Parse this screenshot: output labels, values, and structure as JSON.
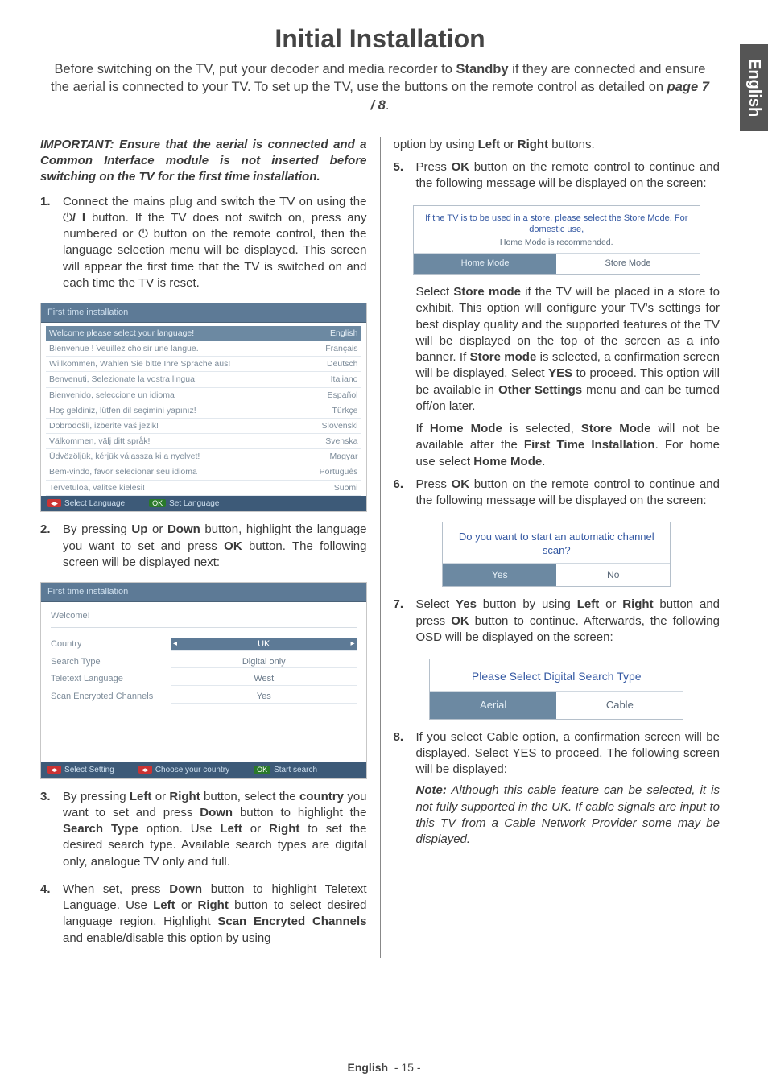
{
  "side_tab": "English",
  "title": "Initial Installation",
  "intro": {
    "pre": "Before switching on the TV, put your decoder and media recorder to ",
    "standby": "Standby",
    "mid": " if they are connected and ensure the aerial is connected to your TV. To set up the TV, use the buttons on the remote control as detailed on ",
    "page_ref": "page 7 / 8",
    "post": "."
  },
  "important": "IMPORTANT: Ensure that the aerial is connected and a Common Interface module is not inserted before switching on the TV for the first time installation.",
  "steps": {
    "s1": {
      "num": "1.",
      "text_a": "Connect the mains plug and switch the TV on using the ",
      "text_b": " button. If the TV does not switch on, press any numbered or ",
      "text_c": " button on the remote control, then the language selection menu will be displayed. This screen will appear the first time that the TV is switched on and each time the TV is reset."
    },
    "s2": {
      "num": "2.",
      "text_a": "By pressing ",
      "up": "Up",
      "or": " or ",
      "down": "Down",
      "text_b": " button, highlight the language you want to set and press ",
      "ok": "OK",
      "text_c": " button. The following screen will be displayed next:"
    },
    "s3": {
      "num": "3.",
      "text_a": "By pressing ",
      "left": "Left",
      "or1": " or ",
      "right": "Right",
      "text_b": " button, select the ",
      "country": "country",
      "text_c": " you want to set and press ",
      "down": "Down",
      "text_d": " button to highlight the ",
      "search": "Search Type",
      "text_e": " option. Use ",
      "left2": "Left",
      "or2": " or ",
      "right2": "Right",
      "text_f": " to set the desired search type. Available search types are digital only, analogue TV only and full."
    },
    "s4": {
      "num": "4.",
      "text_a": "When set, press ",
      "down": "Down",
      "text_b": " button to highlight Teletext Language. Use ",
      "left": "Left",
      "or": " or ",
      "right": "Right",
      "text_c": " button to select desired language region. Highlight ",
      "scan": "Scan Encryted Channels",
      "text_d": " and enable/disable this option by using ",
      "left2": "Left",
      "or2": " or ",
      "right2": "Right",
      "text_e": " buttons."
    },
    "s5": {
      "num": "5.",
      "text_a": "Press ",
      "ok": "OK",
      "text_b": " button on the remote control to continue and the following message will be displayed on the screen:"
    },
    "s5_after": {
      "p1_a": "Select ",
      "p1_b": "Store mode",
      "p1_c": " if the TV will be placed in a store to exhibit. This option will configure your TV's settings for best display quality and the supported features of the TV will be displayed on the top of the screen as a info banner. If ",
      "p1_d": "Store mode",
      "p1_e": " is selected, a confirmation screen will be displayed. Select ",
      "p1_f": "YES",
      "p1_g": " to proceed. This option will be available in ",
      "p1_h": "Other Settings",
      "p1_i": " menu and can be turned off/on later.",
      "p2_a": "If ",
      "p2_b": "Home Mode",
      "p2_c": " is selected, ",
      "p2_d": "Store Mode",
      "p2_e": " will not be available after the ",
      "p2_f": "First Time Installation",
      "p2_g": ". For home use select ",
      "p2_h": "Home Mode",
      "p2_i": "."
    },
    "s6": {
      "num": "6.",
      "text_a": "Press ",
      "ok": "OK",
      "text_b": " button on the remote control to continue and the following message will be displayed on the screen:"
    },
    "s7": {
      "num": "7.",
      "text_a": "Select ",
      "yes": "Yes",
      "text_b": " button by using ",
      "left": "Left",
      "or": " or ",
      "right": "Right",
      "text_c": " button and press ",
      "ok": "OK",
      "text_d": " button to continue. Afterwards, the following OSD will be displayed on the screen:"
    },
    "s8": {
      "num": "8.",
      "text_a": "If you select Cable option, a confirmation screen will be displayed. Select YES to proceed. The following screen will be displayed:",
      "note_label": "Note:",
      "note_text": " Although this cable feature can be selected, it is not fully supported in the UK. If cable signals are input to this TV from a Cable Network Provider some may be displayed."
    }
  },
  "lang_shot": {
    "header": "First time installation",
    "rows": [
      {
        "l": "Welcome please select your language!",
        "r": "English",
        "hl": true
      },
      {
        "l": "Bienvenue ! Veuillez choisir une langue.",
        "r": "Français"
      },
      {
        "l": "Willkommen, Wählen Sie bitte Ihre Sprache aus!",
        "r": "Deutsch"
      },
      {
        "l": "Benvenuti, Selezionate la vostra lingua!",
        "r": "Italiano"
      },
      {
        "l": "Bienvenido, seleccione un idioma",
        "r": "Español"
      },
      {
        "l": "Hoş geldiniz, lütfen dil seçimini yapınız!",
        "r": "Türkçe"
      },
      {
        "l": "Dobrodošli, izberite vaš jezik!",
        "r": "Slovenski"
      },
      {
        "l": "Välkommen, välj ditt språk!",
        "r": "Svenska"
      },
      {
        "l": "Üdvözöljük, kérjük válassza ki a nyelvet!",
        "r": "Magyar"
      },
      {
        "l": "Bem-vindo, favor selecionar seu idioma",
        "r": "Português"
      },
      {
        "l": "Tervetuloa, valitse kielesi!",
        "r": "Suomi"
      }
    ],
    "foot1": "Select Language",
    "foot2": "Set Language"
  },
  "settings_shot": {
    "header": "First time installation",
    "welcome": "Welcome!",
    "rows": [
      {
        "label": "Country",
        "val": "UK",
        "hl": true
      },
      {
        "label": "Search Type",
        "val": "Digital only"
      },
      {
        "label": "Teletext Language",
        "val": "West"
      },
      {
        "label": "Scan Encrypted Channels",
        "val": "Yes"
      }
    ],
    "foot1": "Select Setting",
    "foot2": "Choose your country",
    "foot3": "Start search"
  },
  "mode_shot": {
    "msg": "If the TV is to be used in a store, please select the Store Mode. For domestic use,",
    "sub": "Home Mode is recommended.",
    "b1": "Home Mode",
    "b2": "Store Mode"
  },
  "scan_shot": {
    "msg": "Do you want to start an automatic channel scan?",
    "b1": "Yes",
    "b2": "No"
  },
  "search_shot": {
    "msg_a": "Please Select ",
    "msg_b": "Digital",
    "msg_c": " Search Type",
    "b1": "Aerial",
    "b2": "Cable"
  },
  "footer": {
    "lang": "English",
    "page": "- 15 -"
  }
}
